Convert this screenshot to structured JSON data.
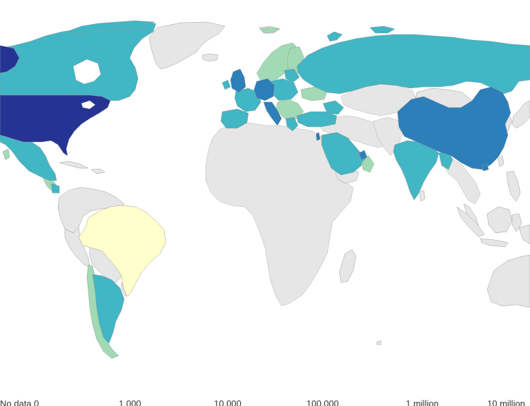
{
  "map": {
    "no_data_color": "#e6e6e6",
    "color_scale": [
      "#ffffcc",
      "#a1dab4",
      "#41b6c4",
      "#2c7fb8",
      "#253494"
    ]
  },
  "legend": {
    "labels": [
      "No data  0",
      "1,000",
      "10,000",
      "100,000",
      "1 million",
      "10 million"
    ]
  }
}
